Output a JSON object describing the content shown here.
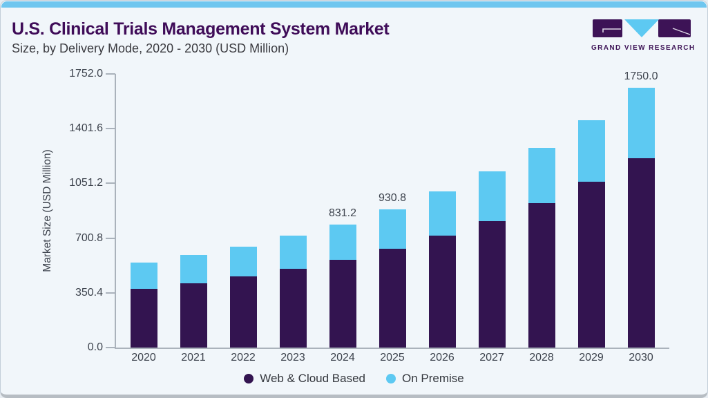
{
  "page": {
    "title": "U.S. Clinical Trials Management System Market",
    "subtitle": "Size, by Delivery Mode, 2020 - 2030 (USD Million)"
  },
  "logo": {
    "name": "Grand View Research",
    "text": "GRAND VIEW RESEARCH"
  },
  "colors": {
    "accent_bar": "#6fc6ef",
    "web_cloud_based": "#331450",
    "on_premise": "#5dc9f2",
    "title": "#3f0c58",
    "axis_text": "#3d434d",
    "axis_line": "#aab2bb",
    "background": "#f1f6fa",
    "logo_purple": "#3d1356"
  },
  "chart_data": {
    "type": "bar",
    "stacked": true,
    "title": "U.S. Clinical Trials Management System Market Size, by Delivery Mode, 2020 - 2030 (USD Million)",
    "xlabel": "",
    "ylabel": "Market Size (USD Million)",
    "categories": [
      "2020",
      "2021",
      "2022",
      "2023",
      "2024",
      "2025",
      "2026",
      "2027",
      "2028",
      "2029",
      "2030"
    ],
    "series": [
      {
        "name": "Web & Cloud Based",
        "color": "#331450",
        "values": [
          396,
          435,
          479,
          529,
          591,
          664,
          755,
          855,
          976,
          1116,
          1277
        ]
      },
      {
        "name": "On Premise",
        "color": "#5dc9f2",
        "values": [
          178,
          190,
          203,
          226,
          240.2,
          266.8,
          296,
          335,
          372,
          418,
          473
        ]
      }
    ],
    "totals": [
      574,
      625,
      682,
      755,
      831.2,
      930.8,
      1051,
      1190,
      1348,
      1534,
      1750
    ],
    "data_labels": [
      "",
      "",
      "",
      "",
      "831.2",
      "930.8",
      "",
      "",
      "",
      "",
      "1750.0"
    ],
    "ylim": [
      0,
      1752
    ],
    "yticks": [
      "1752.0",
      "1401.6",
      "1051.2",
      "700.8",
      "350.4",
      "0.0"
    ],
    "grid": false,
    "legend_position": "bottom"
  }
}
